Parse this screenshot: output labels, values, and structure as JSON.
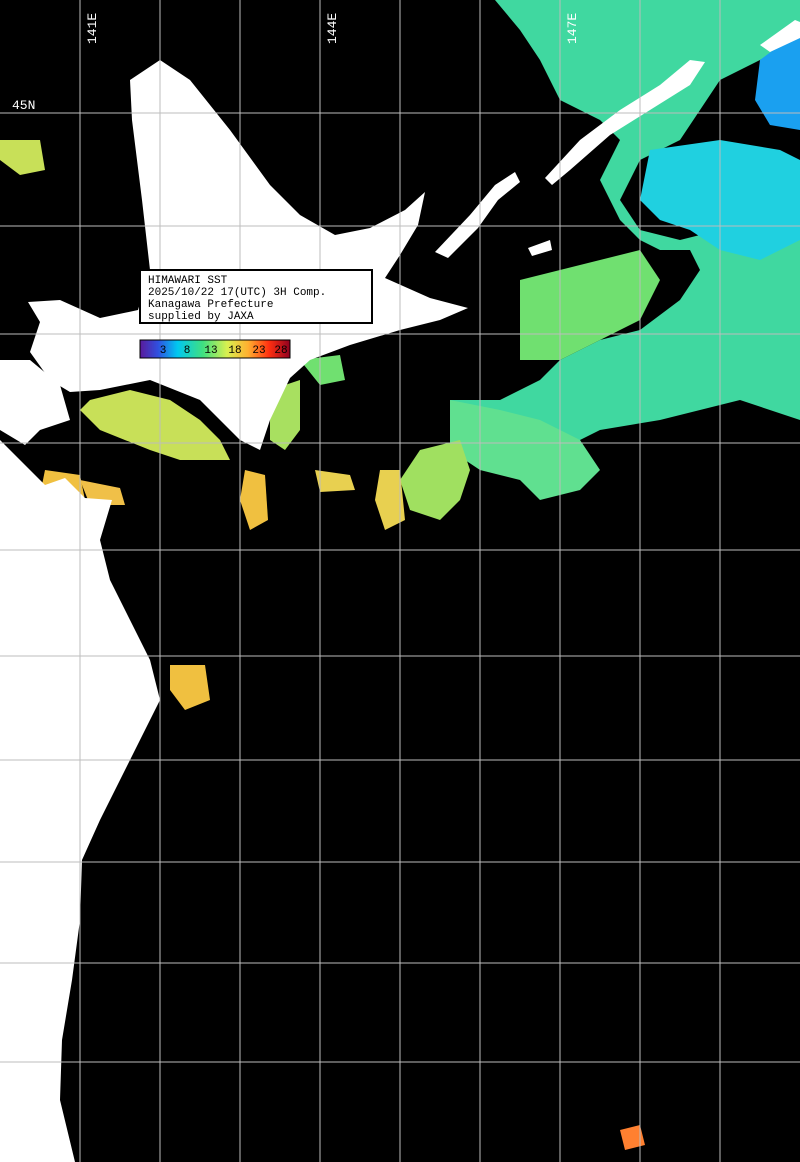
{
  "map": {
    "longitude_labels": [
      "141E",
      "144E",
      "147E"
    ],
    "latitude_labels": [
      "45N"
    ],
    "info_box": {
      "lines": [
        "HIMAWARI SST",
        "2025/10/22 17(UTC) 3H Comp.",
        "Kanagawa Prefecture",
        "supplied by JAXA"
      ]
    },
    "colorbar": {
      "labels": [
        3,
        8,
        13,
        18,
        23,
        28
      ]
    }
  }
}
